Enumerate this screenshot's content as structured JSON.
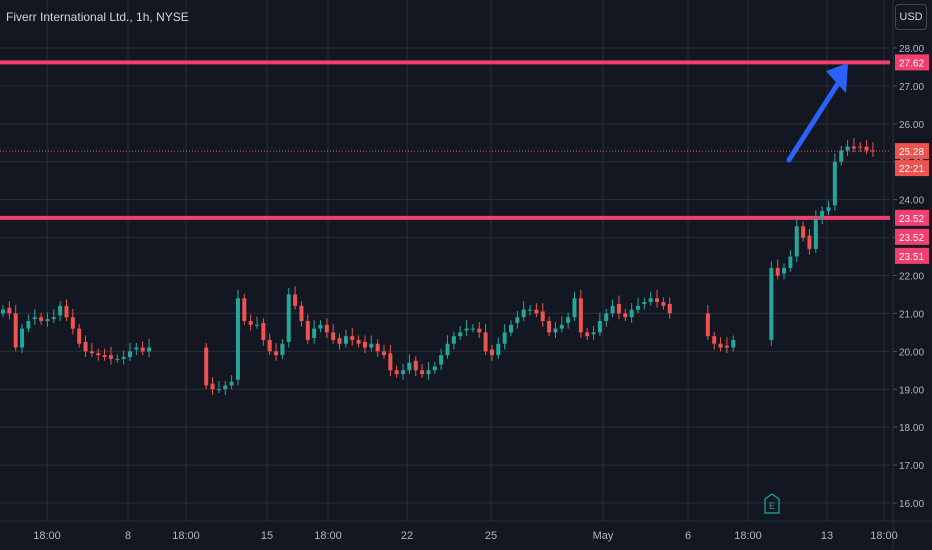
{
  "symbol_title": "Fiverr International Ltd., 1h, NYSE",
  "currency_button": "USD",
  "earnings_marker": "E",
  "colors": {
    "background": "#131722",
    "grid": "#2a2e39",
    "up": "#26a69a",
    "down": "#ef5350",
    "level": "#f23f6f",
    "arrow": "#2962ff",
    "text": "#b2b5be"
  },
  "chart_data": {
    "type": "candlestick",
    "title": "Fiverr International Ltd., 1h, NYSE",
    "y_ticks": [
      "28.00",
      "27.00",
      "26.00",
      "25.00",
      "24.00",
      "23.00",
      "22.00",
      "21.00",
      "20.00",
      "19.00",
      "18.00",
      "17.00",
      "16.00"
    ],
    "ylim": [
      15.7,
      28.4
    ],
    "x_ticks": [
      "18:00",
      "8",
      "18:00",
      "15",
      "18:00",
      "22",
      "25",
      "May",
      "6",
      "18:00",
      "13",
      "18:00"
    ],
    "horizontal_levels": [
      27.62,
      23.52
    ],
    "price_labels": [
      {
        "text": "27.62",
        "kind": "level"
      },
      {
        "text": "25.28",
        "kind": "last"
      },
      {
        "text": "22:21",
        "kind": "countdown"
      },
      {
        "text": "23.52",
        "kind": "level"
      },
      {
        "text": "23.52",
        "kind": "marker"
      },
      {
        "text": "23.51",
        "kind": "marker"
      }
    ],
    "last_price": 25.28,
    "annotation": {
      "type": "arrow",
      "from_price": 25.1,
      "to_price": 27.6
    },
    "closes": [
      21.1,
      21.0,
      20.1,
      20.6,
      20.8,
      20.9,
      20.8,
      20.85,
      20.9,
      21.2,
      20.9,
      20.6,
      20.2,
      20.0,
      19.95,
      19.9,
      19.85,
      19.8,
      19.8,
      19.85,
      20.0,
      20.1,
      20.0,
      20.1,
      19.1,
      19.0,
      19.0,
      19.1,
      19.2,
      21.4,
      20.8,
      20.7,
      20.7,
      20.3,
      20.0,
      19.9,
      20.2,
      21.5,
      21.2,
      20.8,
      20.3,
      20.6,
      20.7,
      20.5,
      20.3,
      20.2,
      20.4,
      20.3,
      20.2,
      20.1,
      20.2,
      20.0,
      19.9,
      19.5,
      19.4,
      19.5,
      19.7,
      19.5,
      19.4,
      19.5,
      19.6,
      19.9,
      20.2,
      20.4,
      20.5,
      20.6,
      20.6,
      20.5,
      20.0,
      19.9,
      20.2,
      20.5,
      20.7,
      20.9,
      21.1,
      21.1,
      21.0,
      20.8,
      20.5,
      20.6,
      20.7,
      20.9,
      21.4,
      20.5,
      20.4,
      20.5,
      20.8,
      21.0,
      21.2,
      21.0,
      20.9,
      21.1,
      21.2,
      21.3,
      21.4,
      21.3,
      21.2,
      21.0,
      20.4,
      20.2,
      20.1,
      20.1,
      20.3,
      22.2,
      22.0,
      22.2,
      22.5,
      23.3,
      23.0,
      22.7,
      23.5,
      23.7,
      23.8,
      25.0,
      25.3,
      25.4,
      25.35,
      25.4,
      25.3,
      25.28
    ]
  }
}
